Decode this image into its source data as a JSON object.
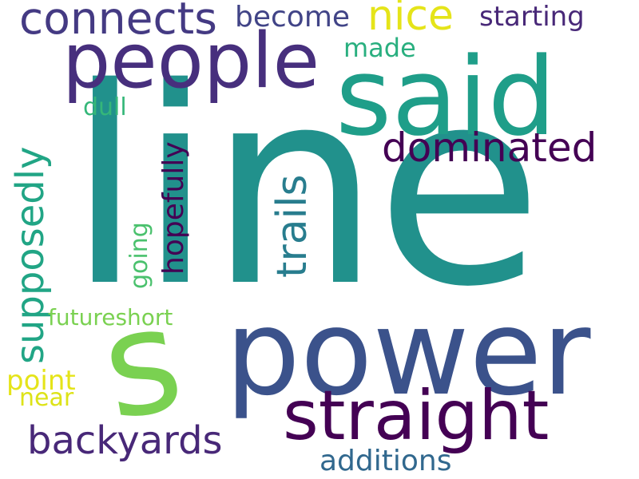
{
  "words": {
    "line": {
      "text": "line",
      "color": "#21918c"
    },
    "power": {
      "text": "power",
      "color": "#3b528b"
    },
    "said": {
      "text": "said",
      "color": "#1f9e89"
    },
    "people": {
      "text": "people",
      "color": "#472f7d"
    },
    "straight": {
      "text": "straight",
      "color": "#440154"
    },
    "s": {
      "text": "s",
      "color": "#7ad151"
    },
    "connects": {
      "text": "connects",
      "color": "#443a83"
    },
    "dominated": {
      "text": "dominated",
      "color": "#440154"
    },
    "backyards": {
      "text": "backyards",
      "color": "#482878"
    },
    "nice": {
      "text": "nice",
      "color": "#e5e419"
    },
    "become": {
      "text": "become",
      "color": "#414487"
    },
    "starting": {
      "text": "starting",
      "color": "#482878"
    },
    "made": {
      "text": "made",
      "color": "#29af7f"
    },
    "additions": {
      "text": "additions",
      "color": "#31688e"
    },
    "futureshort": {
      "text": "futureshort",
      "color": "#7ad151"
    },
    "point": {
      "text": "point",
      "color": "#e5e419"
    },
    "near": {
      "text": "near",
      "color": "#dde318"
    },
    "dull": {
      "text": "dull",
      "color": "#35b779"
    },
    "supposedly": {
      "text": "supposedly",
      "color": "#21a585"
    },
    "trails": {
      "text": "trails",
      "color": "#287d8e"
    },
    "hopefully": {
      "text": "hopefully",
      "color": "#440154"
    },
    "going": {
      "text": "going",
      "color": "#4ac16d"
    }
  }
}
